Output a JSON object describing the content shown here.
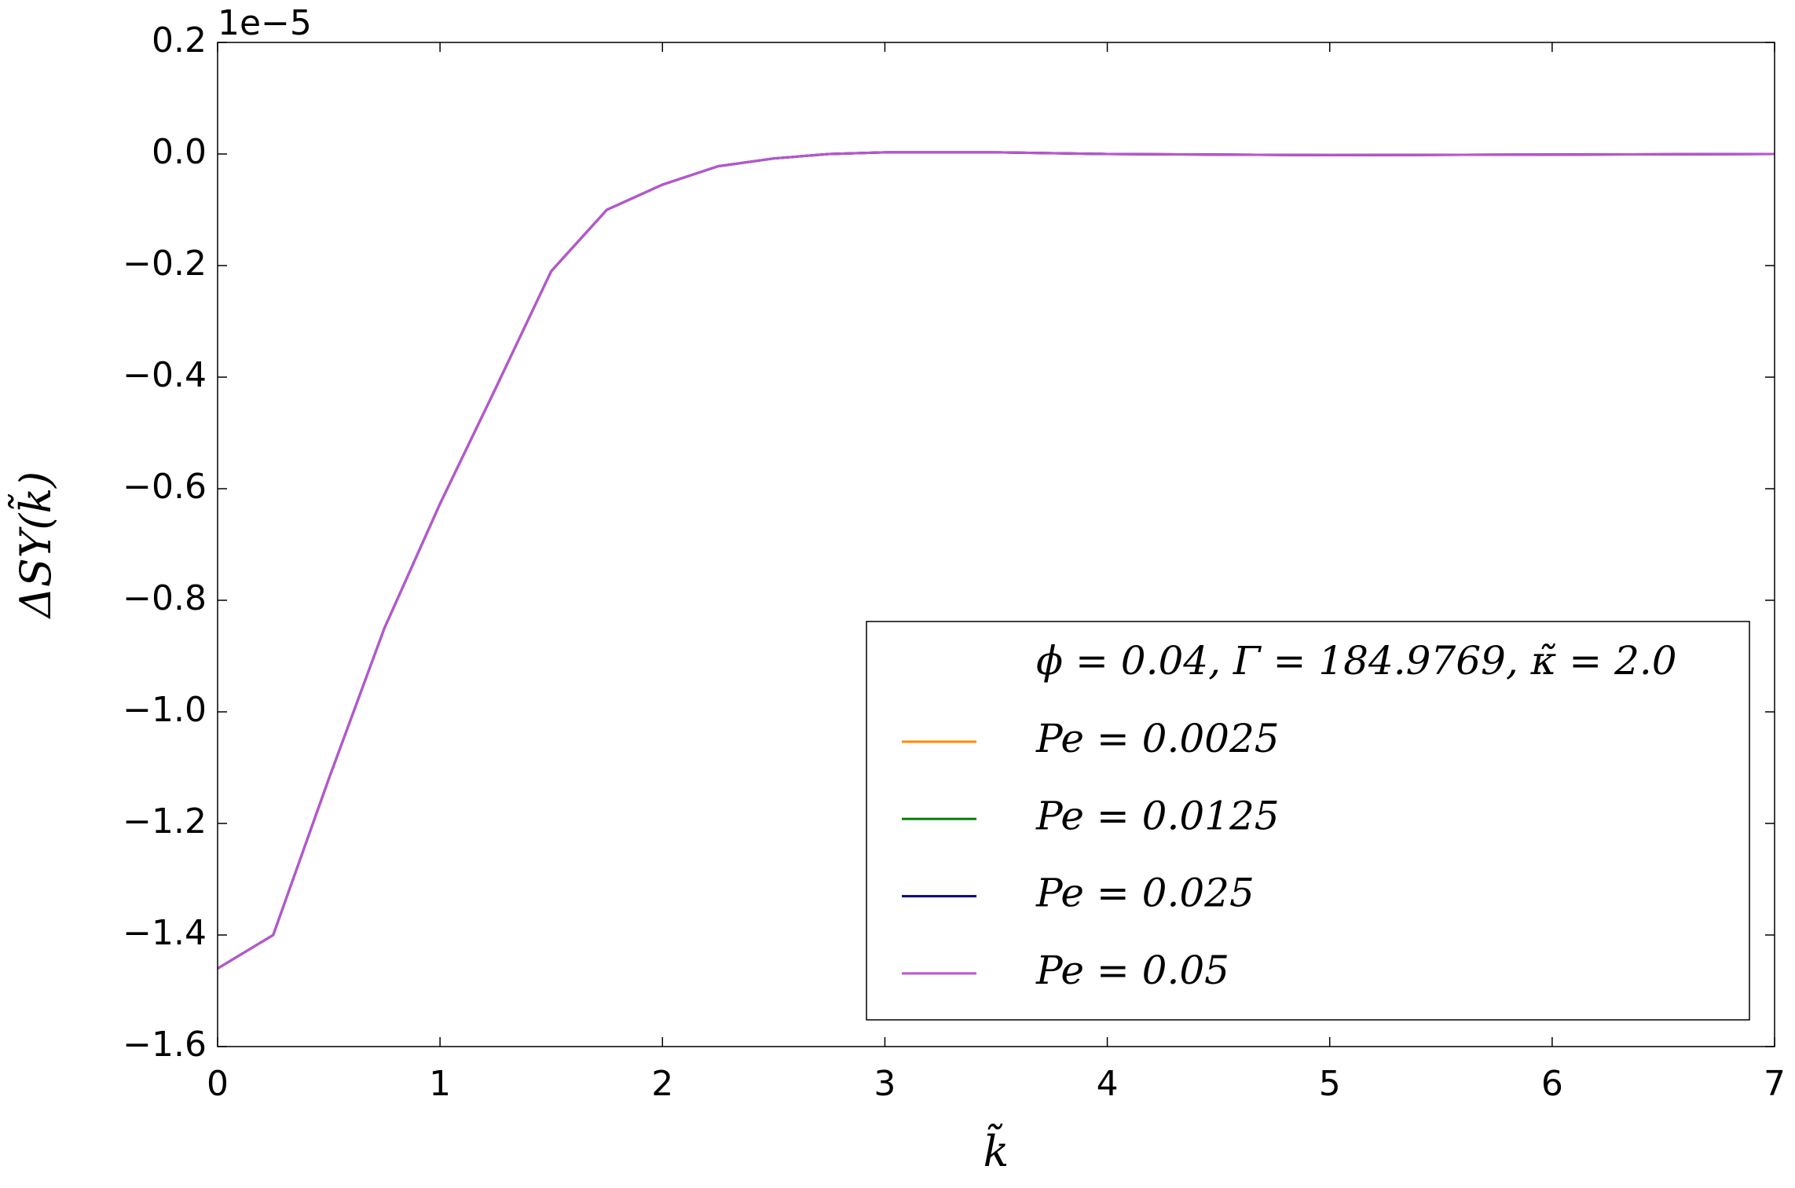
{
  "chart_data": {
    "type": "line",
    "x_label": "k̃",
    "y_label": "ΔSY(k̃)",
    "offset_text": "1e−5",
    "legend_title": "ϕ = 0.04, Γ = 184.9769, κ̃ = 2.0",
    "legend": "lower right",
    "x": [
      0,
      0.25,
      0.5,
      0.75,
      1.0,
      1.25,
      1.5,
      1.75,
      2.0,
      2.25,
      2.5,
      2.75,
      3.0,
      3.5,
      4.0,
      5.0,
      6.0,
      7.0
    ],
    "series": [
      {
        "name": "Pe = 0.0025",
        "color": "#ff8c00",
        "values": [
          -1.46,
          -1.4,
          -1.12,
          -0.85,
          -0.627,
          -0.42,
          -0.21,
          -0.1,
          -0.055,
          -0.022,
          -0.008,
          0,
          0.003,
          0.003,
          0,
          -0.002,
          -0.001,
          0
        ]
      },
      {
        "name": "Pe = 0.0125",
        "color": "#008000",
        "values": [
          -1.46,
          -1.4,
          -1.12,
          -0.85,
          -0.627,
          -0.42,
          -0.21,
          -0.1,
          -0.055,
          -0.022,
          -0.008,
          0,
          0.003,
          0.003,
          0,
          -0.002,
          -0.001,
          0
        ]
      },
      {
        "name": "Pe = 0.025",
        "color": "#000080",
        "values": [
          -1.46,
          -1.4,
          -1.12,
          -0.85,
          -0.627,
          -0.42,
          -0.21,
          -0.1,
          -0.055,
          -0.022,
          -0.008,
          0,
          0.003,
          0.003,
          0,
          -0.002,
          -0.001,
          0
        ]
      },
      {
        "name": "Pe = 0.05",
        "color": "#ba55d3",
        "values": [
          -1.46,
          -1.4,
          -1.12,
          -0.85,
          -0.627,
          -0.42,
          -0.21,
          -0.1,
          -0.055,
          -0.022,
          -0.008,
          0,
          0.003,
          0.003,
          0,
          -0.002,
          -0.001,
          0
        ]
      }
    ],
    "xlim": [
      0,
      7
    ],
    "xticks": [
      0,
      1,
      2,
      3,
      4,
      5,
      6,
      7
    ],
    "ylim": [
      -1.6,
      0.2
    ],
    "yticks": [
      {
        "value": -1.6,
        "label": "−1.6"
      },
      {
        "value": -1.4,
        "label": "−1.4"
      },
      {
        "value": -1.2,
        "label": "−1.2"
      },
      {
        "value": -1.0,
        "label": "−1.0"
      },
      {
        "value": -0.8,
        "label": "−0.8"
      },
      {
        "value": -0.6,
        "label": "−0.6"
      },
      {
        "value": -0.4,
        "label": "−0.4"
      },
      {
        "value": -0.2,
        "label": "−0.2"
      },
      {
        "value": 0,
        "label": "0.0"
      },
      0.2
    ],
    "grid": false
  }
}
